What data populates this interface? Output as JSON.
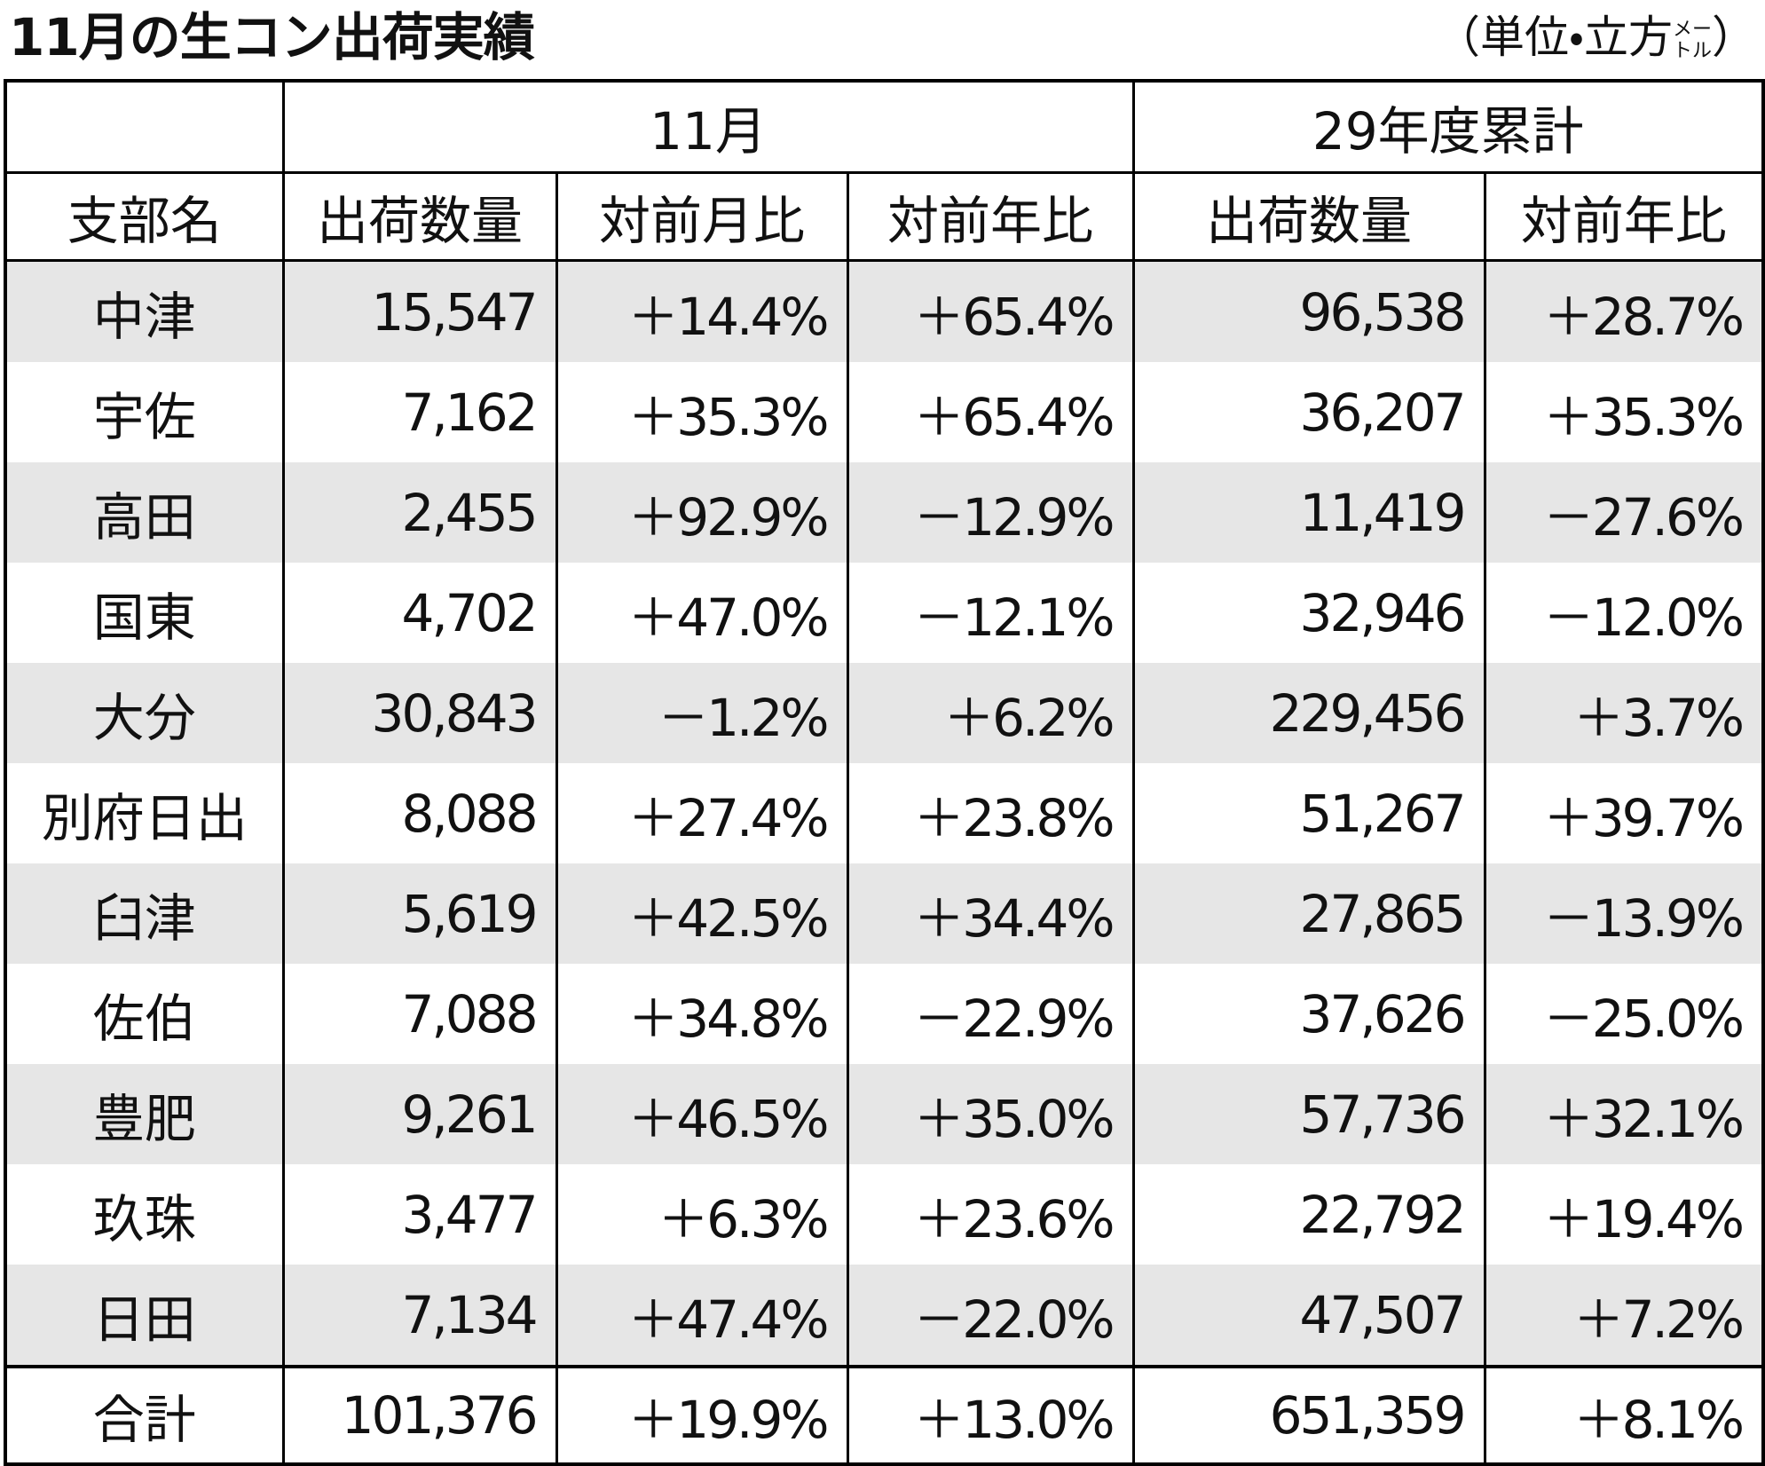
{
  "header": {
    "title": "11月の生コン出荷実績",
    "unit": {
      "open": "（単位・立方",
      "small_top": "メー",
      "small_bottom": "トル",
      "close": "）"
    }
  },
  "table": {
    "group_headers": [
      "11月",
      "29年度累計"
    ],
    "columns": [
      "支部名",
      "出荷数量",
      "対前月比",
      "対前年比",
      "出荷数量",
      "対前年比"
    ],
    "rows": [
      [
        "中津",
        "15,547",
        "＋14.4%",
        "＋65.4%",
        "96,538",
        "＋28.7%"
      ],
      [
        "宇佐",
        "7,162",
        "＋35.3%",
        "＋65.4%",
        "36,207",
        "＋35.3%"
      ],
      [
        "高田",
        "2,455",
        "＋92.9%",
        "－12.9%",
        "11,419",
        "－27.6%"
      ],
      [
        "国東",
        "4,702",
        "＋47.0%",
        "－12.1%",
        "32,946",
        "－12.0%"
      ],
      [
        "大分",
        "30,843",
        "－1.2%",
        "＋6.2%",
        "229,456",
        "＋3.7%"
      ],
      [
        "別府日出",
        "8,088",
        "＋27.4%",
        "＋23.8%",
        "51,267",
        "＋39.7%"
      ],
      [
        "臼津",
        "5,619",
        "＋42.5%",
        "＋34.4%",
        "27,865",
        "－13.9%"
      ],
      [
        "佐伯",
        "7,088",
        "＋34.8%",
        "－22.9%",
        "37,626",
        "－25.0%"
      ],
      [
        "豊肥",
        "9,261",
        "＋46.5%",
        "＋35.0%",
        "57,736",
        "＋32.1%"
      ],
      [
        "玖珠",
        "3,477",
        "＋6.3%",
        "＋23.6%",
        "22,792",
        "＋19.4%"
      ],
      [
        "日田",
        "7,134",
        "＋47.4%",
        "－22.0%",
        "47,507",
        "＋7.2%"
      ]
    ],
    "total": [
      "合計",
      "101,376",
      "＋19.9%",
      "＋13.0%",
      "651,359",
      "＋8.1%"
    ]
  }
}
